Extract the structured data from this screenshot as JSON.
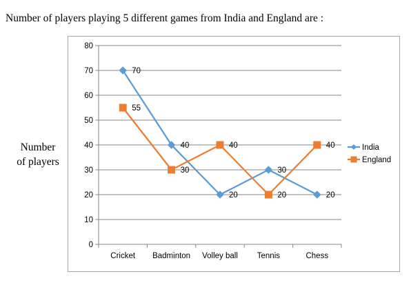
{
  "question": "Number of players playing 5 different games from India and England are :",
  "chart_data": {
    "type": "line",
    "title": "",
    "xlabel": "",
    "ylabel": [
      "Number",
      "of players"
    ],
    "categories": [
      "Cricket",
      "Badminton",
      "Volley ball",
      "Tennis",
      "Chess"
    ],
    "ylim": [
      0,
      80
    ],
    "yticks": [
      "0",
      "10",
      "20",
      "30",
      "40",
      "50",
      "60",
      "70",
      "80"
    ],
    "grid": true,
    "legend": "right",
    "series": [
      {
        "name": "India",
        "values": [
          70,
          40,
          20,
          30,
          20
        ],
        "labels": [
          "70",
          "40",
          "20",
          "30",
          "20"
        ],
        "color": "#5b9bd5",
        "marker": "diamond"
      },
      {
        "name": "England",
        "values": [
          55,
          30,
          40,
          20,
          40
        ],
        "labels": [
          "55",
          "30",
          "40",
          "20",
          "40"
        ],
        "color": "#ed7d31",
        "marker": "square"
      }
    ]
  }
}
